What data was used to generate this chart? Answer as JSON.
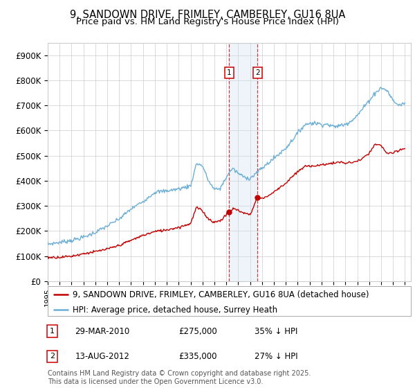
{
  "title": "9, SANDOWN DRIVE, FRIMLEY, CAMBERLEY, GU16 8UA",
  "subtitle": "Price paid vs. HM Land Registry's House Price Index (HPI)",
  "ylabel_ticks": [
    "£0",
    "£100K",
    "£200K",
    "£300K",
    "£400K",
    "£500K",
    "£600K",
    "£700K",
    "£800K",
    "£900K"
  ],
  "ytick_values": [
    0,
    100000,
    200000,
    300000,
    400000,
    500000,
    600000,
    700000,
    800000,
    900000
  ],
  "ylim": [
    0,
    950000
  ],
  "xlim_start": 1995.0,
  "xlim_end": 2025.5,
  "sale1_date": 2010.24,
  "sale1_label": "1",
  "sale1_price": 275000,
  "sale2_date": 2012.62,
  "sale2_label": "2",
  "sale2_price": 335000,
  "legend_line1": "9, SANDOWN DRIVE, FRIMLEY, CAMBERLEY, GU16 8UA (detached house)",
  "legend_line2": "HPI: Average price, detached house, Surrey Heath",
  "footer": "Contains HM Land Registry data © Crown copyright and database right 2025.\nThis data is licensed under the Open Government Licence v3.0.",
  "hpi_color": "#6baed6",
  "price_color": "#c00000",
  "sale_marker_color": "#c00000",
  "shade_color": "#cfe0f0",
  "grid_color": "#cccccc",
  "bg_color": "#ffffff",
  "box_color": "#cc0000",
  "title_fontsize": 10.5,
  "subtitle_fontsize": 9.5,
  "axis_fontsize": 8.5,
  "legend_fontsize": 8.5,
  "footer_fontsize": 7.0,
  "hpi_keypoints": [
    [
      1995.0,
      148000
    ],
    [
      1996.0,
      155000
    ],
    [
      1997.0,
      163000
    ],
    [
      1998.0,
      175000
    ],
    [
      1999.0,
      195000
    ],
    [
      2000.0,
      220000
    ],
    [
      2001.0,
      248000
    ],
    [
      2002.0,
      288000
    ],
    [
      2003.0,
      318000
    ],
    [
      2004.0,
      355000
    ],
    [
      2005.0,
      360000
    ],
    [
      2006.0,
      368000
    ],
    [
      2007.0,
      380000
    ],
    [
      2007.5,
      470000
    ],
    [
      2008.0,
      460000
    ],
    [
      2008.5,
      400000
    ],
    [
      2009.0,
      365000
    ],
    [
      2009.5,
      370000
    ],
    [
      2010.0,
      415000
    ],
    [
      2010.5,
      450000
    ],
    [
      2011.0,
      430000
    ],
    [
      2011.5,
      415000
    ],
    [
      2012.0,
      410000
    ],
    [
      2012.5,
      430000
    ],
    [
      2013.0,
      450000
    ],
    [
      2013.5,
      470000
    ],
    [
      2014.0,
      490000
    ],
    [
      2014.5,
      510000
    ],
    [
      2015.0,
      530000
    ],
    [
      2015.5,
      560000
    ],
    [
      2016.0,
      590000
    ],
    [
      2016.5,
      620000
    ],
    [
      2017.0,
      630000
    ],
    [
      2017.5,
      630000
    ],
    [
      2018.0,
      625000
    ],
    [
      2018.5,
      625000
    ],
    [
      2019.0,
      615000
    ],
    [
      2019.5,
      620000
    ],
    [
      2020.0,
      625000
    ],
    [
      2020.5,
      640000
    ],
    [
      2021.0,
      660000
    ],
    [
      2021.5,
      690000
    ],
    [
      2022.0,
      720000
    ],
    [
      2022.5,
      750000
    ],
    [
      2023.0,
      770000
    ],
    [
      2023.5,
      760000
    ],
    [
      2024.0,
      720000
    ],
    [
      2024.5,
      700000
    ],
    [
      2025.0,
      710000
    ]
  ],
  "price_keypoints": [
    [
      1995.0,
      95000
    ],
    [
      1996.0,
      96000
    ],
    [
      1997.0,
      100000
    ],
    [
      1998.0,
      110000
    ],
    [
      1999.0,
      118000
    ],
    [
      2000.0,
      128000
    ],
    [
      2001.0,
      143000
    ],
    [
      2002.0,
      163000
    ],
    [
      2003.0,
      183000
    ],
    [
      2004.0,
      198000
    ],
    [
      2005.0,
      205000
    ],
    [
      2006.0,
      215000
    ],
    [
      2007.0,
      230000
    ],
    [
      2007.5,
      295000
    ],
    [
      2008.0,
      280000
    ],
    [
      2008.5,
      248000
    ],
    [
      2009.0,
      235000
    ],
    [
      2009.5,
      242000
    ],
    [
      2010.24,
      275000
    ],
    [
      2010.6,
      290000
    ],
    [
      2011.0,
      282000
    ],
    [
      2011.5,
      272000
    ],
    [
      2012.0,
      265000
    ],
    [
      2012.62,
      335000
    ],
    [
      2013.0,
      330000
    ],
    [
      2013.5,
      340000
    ],
    [
      2014.0,
      355000
    ],
    [
      2014.5,
      375000
    ],
    [
      2015.0,
      390000
    ],
    [
      2015.5,
      415000
    ],
    [
      2016.0,
      435000
    ],
    [
      2016.5,
      455000
    ],
    [
      2017.0,
      460000
    ],
    [
      2017.5,
      460000
    ],
    [
      2018.0,
      463000
    ],
    [
      2018.5,
      468000
    ],
    [
      2019.0,
      470000
    ],
    [
      2019.5,
      475000
    ],
    [
      2020.0,
      470000
    ],
    [
      2020.5,
      473000
    ],
    [
      2021.0,
      478000
    ],
    [
      2021.5,
      490000
    ],
    [
      2022.0,
      510000
    ],
    [
      2022.5,
      545000
    ],
    [
      2023.0,
      540000
    ],
    [
      2023.5,
      510000
    ],
    [
      2024.0,
      510000
    ],
    [
      2024.5,
      520000
    ],
    [
      2025.0,
      530000
    ]
  ]
}
